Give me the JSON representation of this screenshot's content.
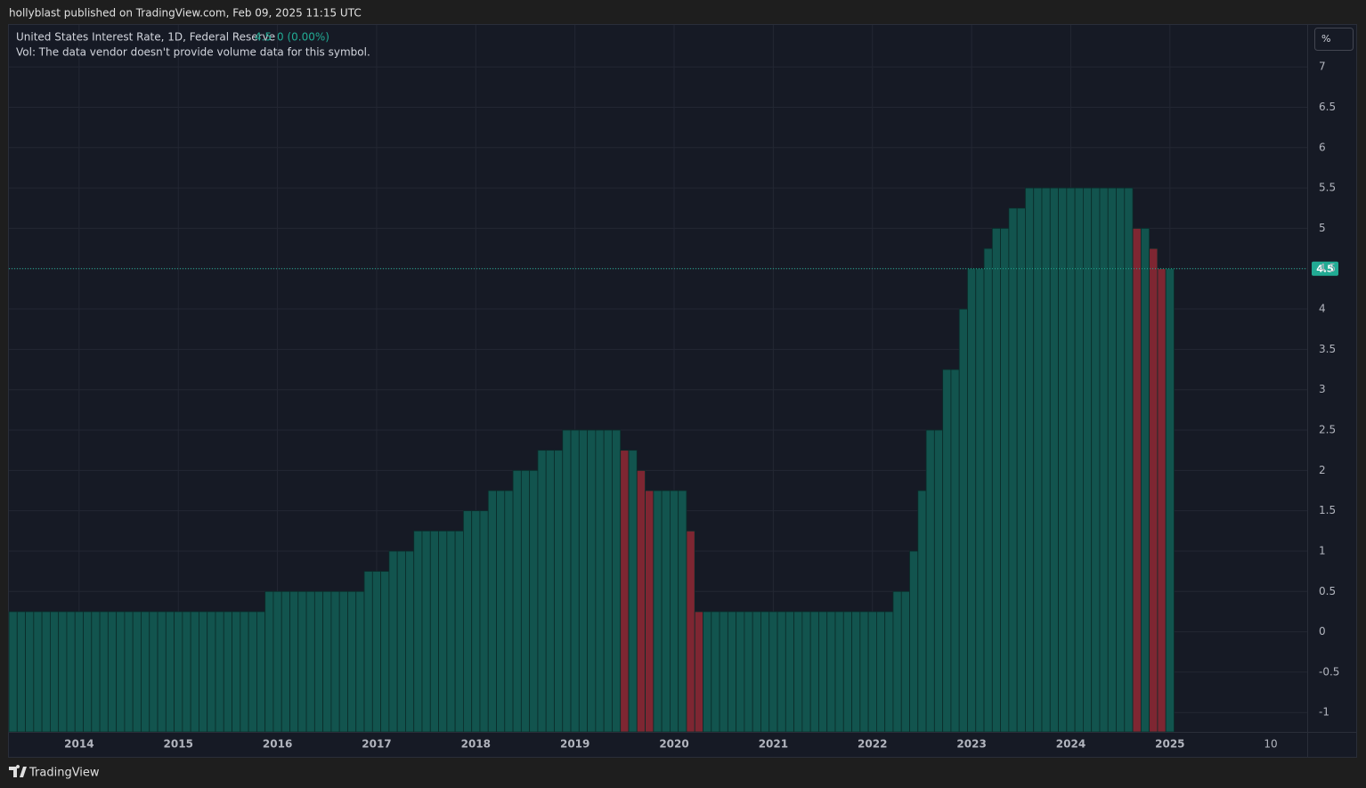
{
  "header": {
    "publisher": "hollyblast published on TradingView.com, Feb 09, 2025 11:15 UTC"
  },
  "footer": {
    "brand": "TradingView"
  },
  "chart_data": {
    "type": "bar",
    "title": "United States Interest Rate, 1D, Federal Reserve",
    "last_value": 4.5,
    "change_label": "0 (0.00%)",
    "subtitle": "Vol: The data vendor doesn't provide volume data for this symbol.",
    "unit_button": "%",
    "x_extra_label": "10",
    "up_color": "#12544e",
    "down_color": "#7e2632",
    "grid": true,
    "ylim": [
      -1.24,
      7.52
    ],
    "yticks": [
      -1,
      -0.5,
      0,
      0.5,
      1,
      1.5,
      2,
      2.5,
      3,
      3.5,
      4,
      4.5,
      5,
      5.5,
      6,
      6.5,
      7
    ],
    "categories": [
      null,
      null,
      null,
      null,
      null,
      null,
      null,
      null,
      "2014",
      null,
      null,
      null,
      null,
      null,
      null,
      null,
      null,
      null,
      null,
      null,
      "2015",
      null,
      null,
      null,
      null,
      null,
      null,
      null,
      null,
      null,
      null,
      null,
      "2016",
      null,
      null,
      null,
      null,
      null,
      null,
      null,
      null,
      null,
      null,
      null,
      "2017",
      null,
      null,
      null,
      null,
      null,
      null,
      null,
      null,
      null,
      null,
      null,
      "2018",
      null,
      null,
      null,
      null,
      null,
      null,
      null,
      null,
      null,
      null,
      null,
      "2019",
      null,
      null,
      null,
      null,
      null,
      null,
      null,
      null,
      null,
      null,
      null,
      "2020",
      null,
      null,
      null,
      null,
      null,
      null,
      null,
      null,
      null,
      null,
      null,
      "2021",
      null,
      null,
      null,
      null,
      null,
      null,
      null,
      null,
      null,
      null,
      null,
      "2022",
      null,
      null,
      null,
      null,
      null,
      null,
      null,
      null,
      null,
      null,
      null,
      "2023",
      null,
      null,
      null,
      null,
      null,
      null,
      null,
      null,
      null,
      null,
      null,
      "2024",
      null,
      null,
      null,
      null,
      null,
      null,
      null,
      null,
      null,
      null,
      null,
      "2025"
    ],
    "values": [
      0.25,
      0.25,
      0.25,
      0.25,
      0.25,
      0.25,
      0.25,
      0.25,
      0.25,
      0.25,
      0.25,
      0.25,
      0.25,
      0.25,
      0.25,
      0.25,
      0.25,
      0.25,
      0.25,
      0.25,
      0.25,
      0.25,
      0.25,
      0.25,
      0.25,
      0.25,
      0.25,
      0.25,
      0.25,
      0.25,
      0.25,
      0.5,
      0.5,
      0.5,
      0.5,
      0.5,
      0.5,
      0.5,
      0.5,
      0.5,
      0.5,
      0.5,
      0.5,
      0.75,
      0.75,
      0.75,
      1,
      1,
      1,
      1.25,
      1.25,
      1.25,
      1.25,
      1.25,
      1.25,
      1.5,
      1.5,
      1.5,
      1.75,
      1.75,
      1.75,
      2,
      2,
      2,
      2.25,
      2.25,
      2.25,
      2.5,
      2.5,
      2.5,
      2.5,
      2.5,
      2.5,
      2.5,
      2.25,
      2.25,
      2,
      1.75,
      1.75,
      1.75,
      1.75,
      1.75,
      1.25,
      0.25,
      0.25,
      0.25,
      0.25,
      0.25,
      0.25,
      0.25,
      0.25,
      0.25,
      0.25,
      0.25,
      0.25,
      0.25,
      0.25,
      0.25,
      0.25,
      0.25,
      0.25,
      0.25,
      0.25,
      0.25,
      0.25,
      0.25,
      0.25,
      0.5,
      0.5,
      1,
      1.75,
      2.5,
      2.5,
      3.25,
      3.25,
      4,
      4.5,
      4.5,
      4.75,
      5,
      5,
      5.25,
      5.25,
      5.5,
      5.5,
      5.5,
      5.5,
      5.5,
      5.5,
      5.5,
      5.5,
      5.5,
      5.5,
      5.5,
      5.5,
      5.5,
      5,
      5,
      4.75,
      4.5,
      4.5
    ]
  }
}
